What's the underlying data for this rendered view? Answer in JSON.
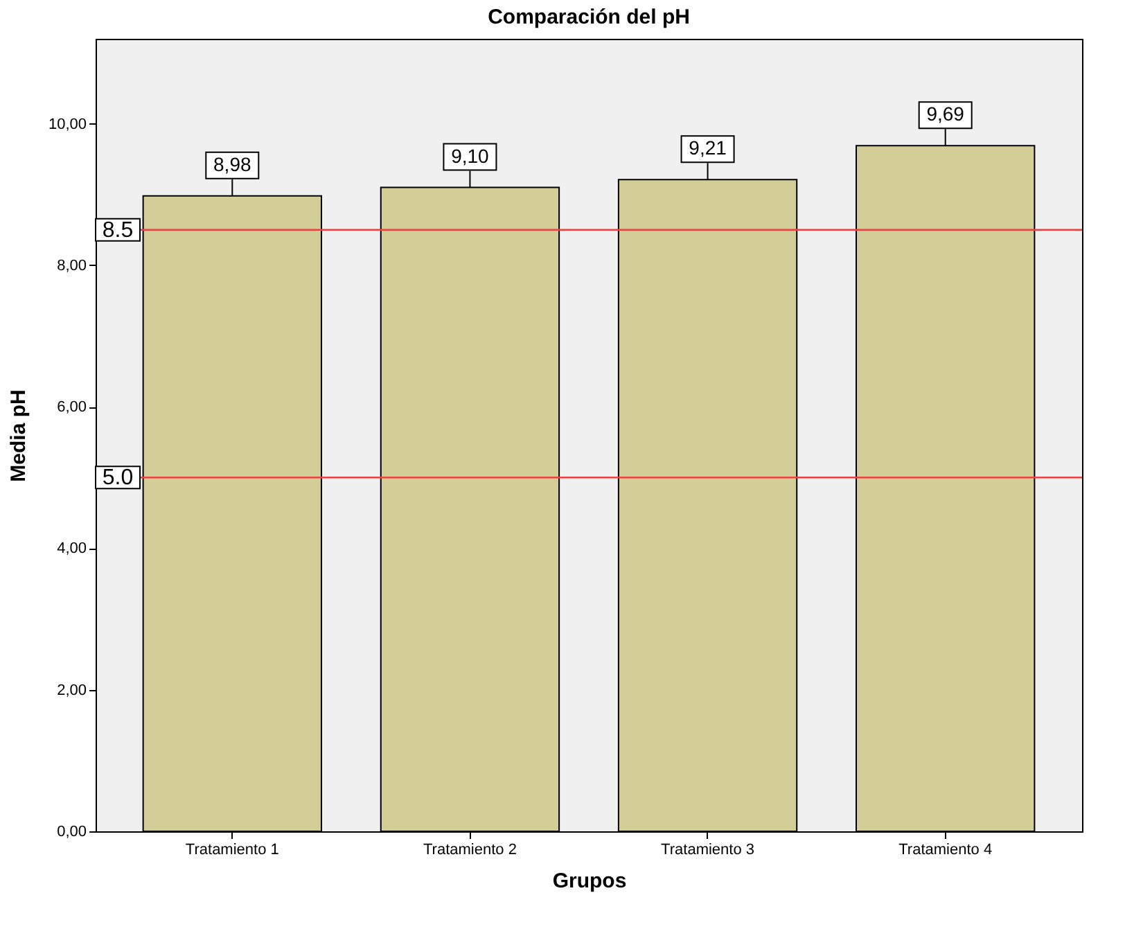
{
  "chart_data": {
    "type": "bar",
    "title": "Comparación del pH",
    "xlabel": "Grupos",
    "ylabel": "Media pH",
    "categories": [
      "Tratamiento 1",
      "Tratamiento 2",
      "Tratamiento 3",
      "Tratamiento 4"
    ],
    "values": [
      8.98,
      9.1,
      9.21,
      9.69
    ],
    "value_labels": [
      "8,98",
      "9,10",
      "9,21",
      "9,69"
    ],
    "color": "#d3ce97",
    "ylim": [
      0,
      11.2
    ],
    "yticks": [
      {
        "value": 0,
        "label": "0,00"
      },
      {
        "value": 2,
        "label": "2,00"
      },
      {
        "value": 4,
        "label": "4,00"
      },
      {
        "value": 6,
        "label": "6,00"
      },
      {
        "value": 8,
        "label": "8,00"
      },
      {
        "value": 10,
        "label": "10,00"
      }
    ],
    "ref_lines": [
      {
        "axis": "y",
        "value": 8.5,
        "label": "8.5",
        "color": "#ee4040"
      },
      {
        "axis": "y",
        "value": 5.0,
        "label": "5.0",
        "color": "#ee4040"
      }
    ],
    "grid": false
  }
}
